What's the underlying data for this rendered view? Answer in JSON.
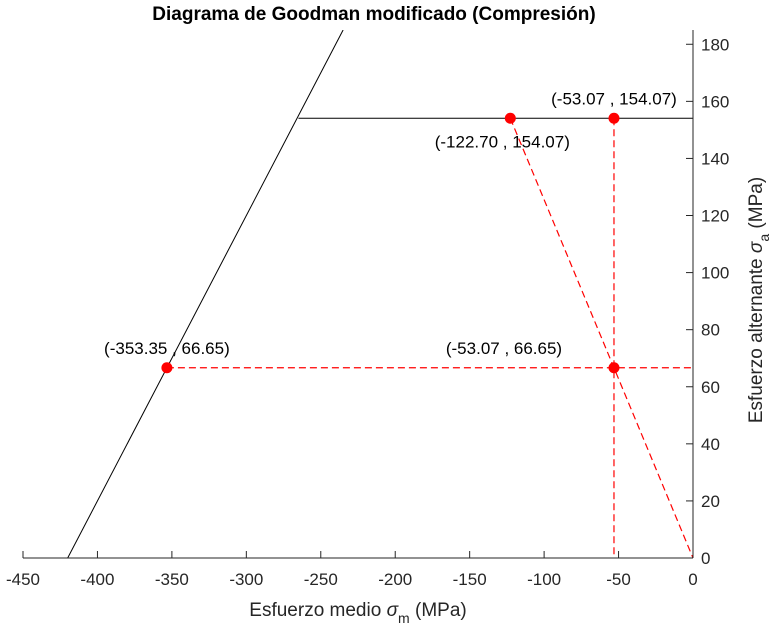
{
  "chart_data": {
    "type": "line",
    "title": "Diagrama de Goodman modificado (Compresión)",
    "xlabel": {
      "prefix": "Esfuerzo medio ",
      "symbol": "σ",
      "sub": "m",
      "suffix": " (MPa)"
    },
    "ylabel": {
      "prefix": "Esfuerzo alternante ",
      "symbol": "σ",
      "sub": "a",
      "suffix": " (MPa)"
    },
    "xlim": [
      -450,
      0
    ],
    "ylim": [
      0,
      185
    ],
    "xticks": [
      -450,
      -400,
      -350,
      -300,
      -250,
      -200,
      -150,
      -100,
      -50,
      0
    ],
    "yticks": [
      0,
      20,
      40,
      60,
      80,
      100,
      120,
      140,
      160,
      180
    ],
    "y_axis_location": "right",
    "grid": false,
    "series": [
      {
        "style": "solid",
        "color": "#000000",
        "x": [
          -420,
          -235
        ],
        "y": [
          0,
          185
        ]
      },
      {
        "style": "solid",
        "color": "#000000",
        "x": [
          -265,
          0
        ],
        "y": [
          154.07,
          154.07
        ]
      },
      {
        "style": "dashed",
        "color": "#ff0000",
        "x": [
          -122.7,
          0
        ],
        "y": [
          154.07,
          0
        ]
      },
      {
        "style": "dashed",
        "color": "#ff0000",
        "x": [
          -53.07,
          -53.07
        ],
        "y": [
          154.07,
          0
        ]
      },
      {
        "style": "dashed",
        "color": "#ff0000",
        "x": [
          -353.35,
          0
        ],
        "y": [
          66.65,
          66.65
        ]
      }
    ],
    "points": [
      {
        "x": -53.07,
        "y": 154.07,
        "label": "(-53.07 , 154.07)",
        "label_pos": "above"
      },
      {
        "x": -122.7,
        "y": 154.07,
        "label": "(-122.70 , 154.07)",
        "label_pos": "below"
      },
      {
        "x": -353.35,
        "y": 66.65,
        "label": "(-353.35 , 66.65)",
        "label_pos": "above"
      },
      {
        "x": -53.07,
        "y": 66.65,
        "label": "(-53.07 , 66.65)",
        "label_pos": "above-left"
      }
    ],
    "marker_color": "#ff0000"
  }
}
